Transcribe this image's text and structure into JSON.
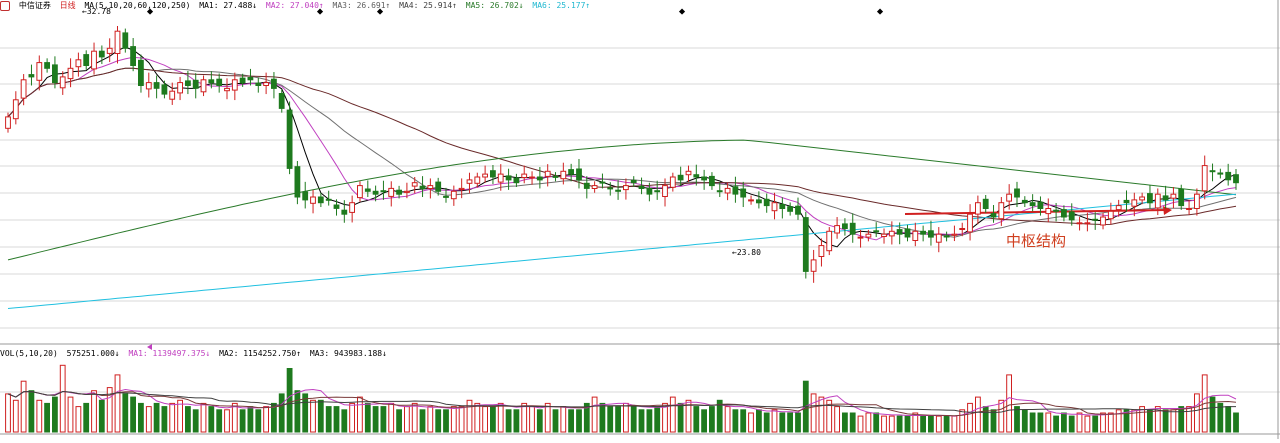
{
  "header": {
    "stock_name": "中信证券",
    "period": "日线",
    "ma_label": "MA(5,10,20,60,120,250)",
    "ma1": "MA1: 27.488↓",
    "ma2": "MA2: 27.040↑",
    "ma3": "MA3: 26.691↑",
    "ma4": "MA4: 25.914↑",
    "ma5": "MA5: 26.702↓",
    "ma6": "MA6: 25.177↑"
  },
  "volume_header": {
    "label": "VOL(5,10,20)",
    "vol": "575251.000↓",
    "ma1": "MA1: 1139497.375↓",
    "ma2": "MA2: 1154252.750↑",
    "ma3": "MA3: 943983.188↓"
  },
  "annotations": {
    "high_label": "32.78",
    "low_label": "23.80",
    "zhongshu_label": "中枢结构"
  },
  "colors": {
    "up": "#d02020",
    "down": "#1e7a1e",
    "ma5": "#000000",
    "ma10": "#c040c0",
    "ma20": "#707070",
    "ma60": "#6a2a2a",
    "ma120": "#2a7a2a",
    "ma250": "#20c0e0",
    "grid": "#d8d8d8",
    "arrow": "#d02020"
  },
  "chart_data": [
    {
      "type": "candlestick",
      "panel": "price",
      "ylim": [
        21.8,
        33.2
      ],
      "high": 32.78,
      "low": 23.8,
      "closes": [
        29.6,
        30.2,
        30.9,
        31.0,
        31.5,
        31.3,
        30.8,
        31.0,
        31.3,
        31.6,
        31.4,
        31.9,
        31.7,
        32.0,
        32.6,
        32.0,
        31.4,
        30.7,
        30.8,
        30.6,
        30.4,
        30.5,
        30.8,
        30.7,
        30.6,
        30.9,
        30.8,
        30.7,
        30.6,
        30.9,
        30.8,
        30.9,
        30.7,
        30.8,
        30.6,
        29.9,
        27.8,
        26.8,
        26.7,
        26.8,
        26.6,
        26.7,
        26.4,
        26.2,
        26.6,
        27.2,
        27.0,
        26.9,
        27.0,
        27.1,
        26.9,
        27.0,
        27.3,
        27.1,
        27.2,
        27.0,
        26.8,
        27.0,
        27.1,
        27.4,
        27.5,
        27.6,
        27.5,
        27.6,
        27.4,
        27.3,
        27.6,
        27.5,
        27.4,
        27.7,
        27.5,
        27.7,
        27.6,
        27.4,
        27.1,
        27.2,
        27.3,
        27.1,
        27.0,
        27.2,
        27.3,
        27.1,
        26.9,
        27.0,
        27.2,
        27.5,
        27.4,
        27.7,
        27.5,
        27.4,
        27.2,
        27.0,
        27.1,
        26.9,
        26.8,
        26.7,
        26.6,
        26.5,
        26.6,
        26.4,
        26.3,
        26.2,
        24.2,
        24.6,
        25.1,
        25.6,
        25.8,
        25.7,
        25.5,
        25.4,
        25.5,
        25.6,
        25.5,
        25.6,
        25.5,
        25.4,
        25.6,
        25.5,
        25.4,
        25.5,
        25.4,
        25.5,
        25.7,
        26.2,
        26.6,
        26.4,
        26.1,
        26.6,
        26.9,
        26.8,
        26.6,
        26.5,
        26.4,
        26.4,
        26.3,
        26.1,
        26.0,
        25.9,
        25.9,
        26.0,
        26.1,
        26.3,
        26.5,
        26.6,
        26.7,
        26.8,
        26.6,
        26.9,
        26.7,
        26.9,
        26.5,
        26.4,
        26.9,
        27.9,
        27.7,
        27.6,
        27.4,
        27.3
      ]
    },
    {
      "type": "bar",
      "panel": "volume",
      "values": [
        1.2,
        1.0,
        1.6,
        1.3,
        1.0,
        0.9,
        1.1,
        2.1,
        1.1,
        0.8,
        0.9,
        1.3,
        1.0,
        1.4,
        1.8,
        1.2,
        1.1,
        0.9,
        0.8,
        0.9,
        0.8,
        0.9,
        1.0,
        0.8,
        0.7,
        0.9,
        0.8,
        0.7,
        0.7,
        0.9,
        0.7,
        0.8,
        0.7,
        0.8,
        0.9,
        1.2,
        2.0,
        1.3,
        1.2,
        1.0,
        1.0,
        0.8,
        0.8,
        0.7,
        0.9,
        1.1,
        0.9,
        0.8,
        0.8,
        0.9,
        0.7,
        0.8,
        0.9,
        0.7,
        0.8,
        0.7,
        0.7,
        0.8,
        0.8,
        1.0,
        0.9,
        0.8,
        0.8,
        0.9,
        0.7,
        0.7,
        0.9,
        0.8,
        0.7,
        0.9,
        0.7,
        0.8,
        0.7,
        0.7,
        0.9,
        1.1,
        0.9,
        0.8,
        0.8,
        0.9,
        0.8,
        0.7,
        0.7,
        0.8,
        0.9,
        1.1,
        0.9,
        1.0,
        0.8,
        0.7,
        0.8,
        1.0,
        0.8,
        0.7,
        0.7,
        0.6,
        0.7,
        0.6,
        0.7,
        0.6,
        0.6,
        0.6,
        1.6,
        1.2,
        1.1,
        1.0,
        0.8,
        0.6,
        0.6,
        0.5,
        0.6,
        0.6,
        0.5,
        0.5,
        0.5,
        0.5,
        0.6,
        0.5,
        0.5,
        0.5,
        0.5,
        0.5,
        0.7,
        0.9,
        1.1,
        0.8,
        0.7,
        1.0,
        1.8,
        0.8,
        0.7,
        0.6,
        0.6,
        0.6,
        0.5,
        0.6,
        0.5,
        0.6,
        0.5,
        0.5,
        0.6,
        0.6,
        0.7,
        0.7,
        0.7,
        0.8,
        0.7,
        0.8,
        0.7,
        0.7,
        0.8,
        0.8,
        1.2,
        1.8,
        1.1,
        0.9,
        0.8,
        0.6
      ]
    }
  ]
}
